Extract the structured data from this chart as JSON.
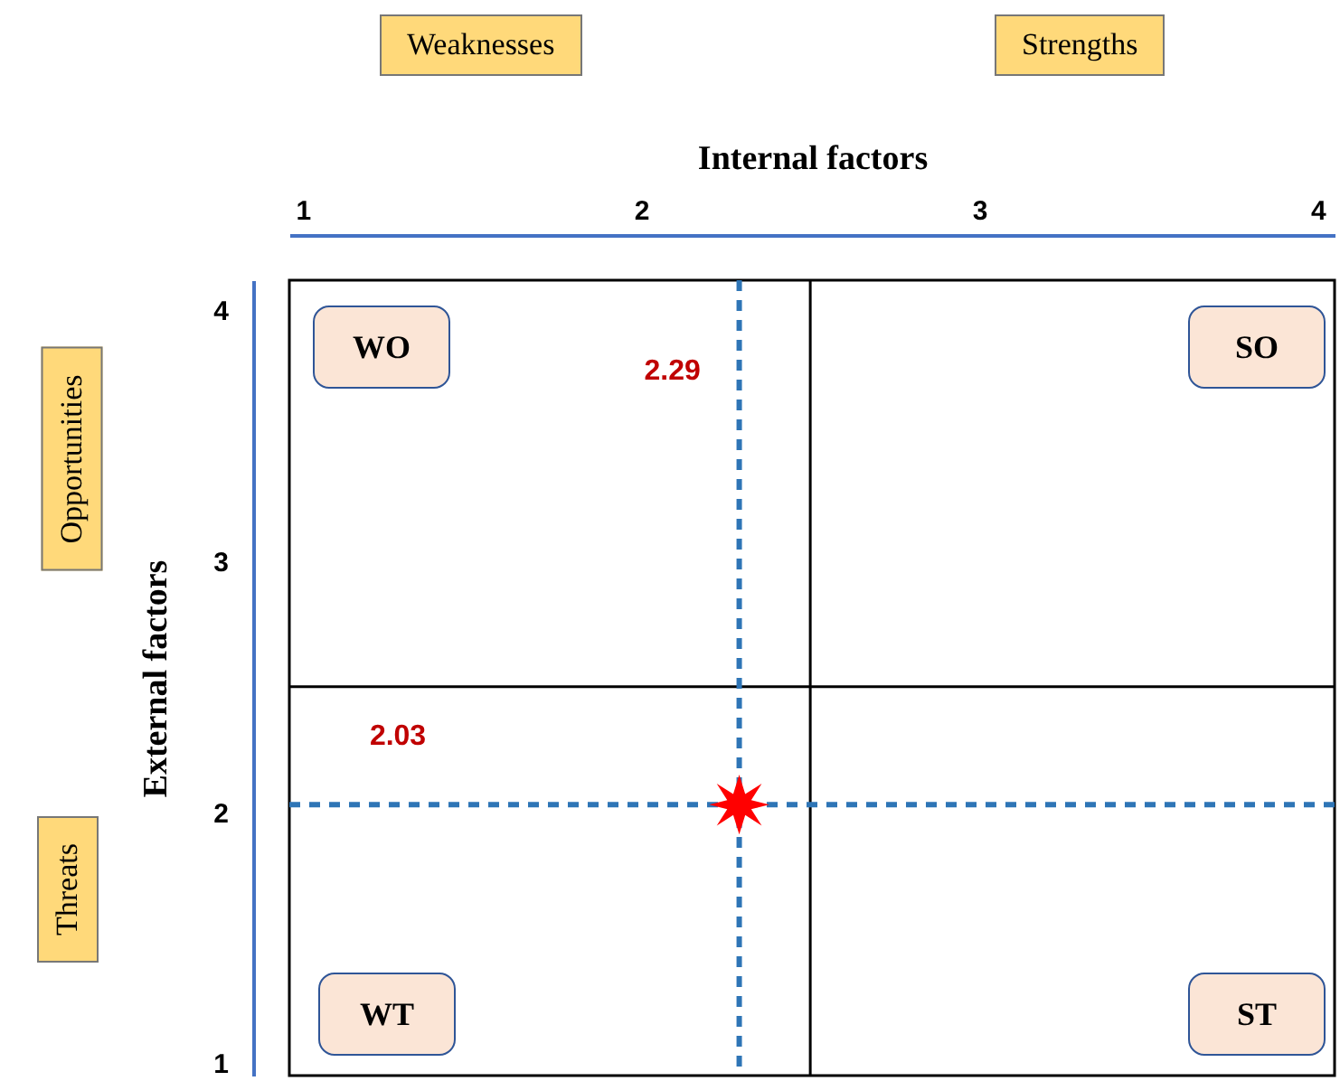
{
  "chart_data": {
    "type": "scatter",
    "xlabel": "Internal factors",
    "ylabel": "External factors",
    "xlim": [
      0.96,
      4.05
    ],
    "xticks": [
      1,
      2,
      3,
      4
    ],
    "ylim": [
      0.95,
      4.12
    ],
    "yticks": [
      1,
      2,
      3,
      4
    ],
    "x": [
      2.29
    ],
    "values": [
      2.03
    ],
    "color": "#ff0000",
    "marker": "star",
    "grid": false,
    "ref_lines": [
      {
        "axis": "x",
        "value": 2.5,
        "color": "#000000",
        "line_style": "solid"
      },
      {
        "axis": "y",
        "value": 2.5,
        "color": "#000000",
        "line_style": "solid"
      },
      {
        "axis": "x",
        "value": 2.29,
        "label": "2.29",
        "color": "#2e75b6",
        "line_style": "dashed"
      },
      {
        "axis": "y",
        "value": 2.03,
        "label": "2.03",
        "color": "#2e75b6",
        "line_style": "dashed"
      }
    ],
    "annotations": [
      "WO",
      "SO",
      "WT",
      "ST",
      "Weaknesses",
      "Strengths",
      "Opportunities",
      "Threats"
    ]
  }
}
